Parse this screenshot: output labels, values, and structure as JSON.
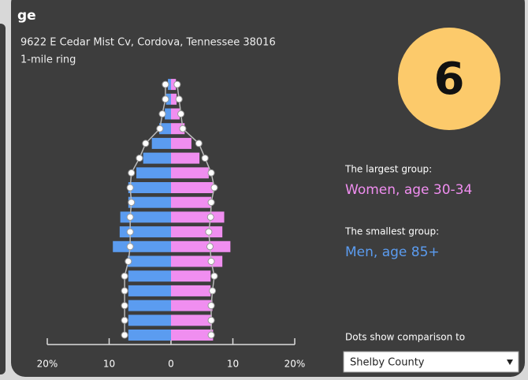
{
  "title": "ge",
  "subtitle": "9622 E Cedar Mist Cv, Cordova, Tennessee 38016",
  "ring": "1-mile ring",
  "badge": "6",
  "largest_label": "The largest group:",
  "largest_value": "Women, age 30-34",
  "smallest_label": "The smallest group:",
  "smallest_value": "Men, age 85+",
  "compare_label": "Dots show comparison to",
  "compare_select": "Shelby County",
  "chart_data": {
    "type": "pyramid",
    "categories": [
      null,
      null,
      null,
      null,
      null,
      null,
      null,
      null,
      null,
      null,
      null,
      null,
      null,
      null,
      null,
      null,
      null,
      null
    ],
    "series": [
      {
        "color": "#5b9cf0",
        "values": [
          -6.9,
          -6.9,
          -6.9,
          -6.9,
          -6.9,
          -7.0,
          -9.4,
          -8.3,
          -8.2,
          -6.9,
          -6.9,
          -5.6,
          -4.5,
          -3.1,
          -1.9,
          -1.0,
          -0.8,
          -0.5
        ]
      },
      {
        "color": "#f08ef0",
        "values": [
          6.8,
          6.6,
          6.7,
          6.4,
          6.4,
          8.3,
          9.6,
          8.3,
          8.6,
          6.5,
          6.9,
          6.1,
          4.6,
          3.3,
          2.2,
          1.4,
          0.9,
          0.8
        ]
      }
    ],
    "comparison": [
      {
        "color": "#ffffff",
        "values": [
          -7.5,
          -7.5,
          -7.5,
          -7.5,
          -7.5,
          -6.9,
          -6.6,
          -6.6,
          -6.6,
          -6.4,
          -6.6,
          -6.4,
          -5.1,
          -4.1,
          -1.8,
          -1.4,
          -0.9,
          -0.9
        ]
      },
      {
        "color": "#ffffff",
        "values": [
          6.5,
          6.5,
          6.5,
          6.7,
          7.0,
          6.5,
          6.3,
          6.1,
          6.4,
          6.5,
          7.0,
          6.5,
          5.5,
          4.5,
          1.9,
          1.6,
          1.3,
          1.0
        ]
      }
    ],
    "xlim": [
      -20,
      20
    ],
    "xticks": [
      {
        "value": -20,
        "label": "20%"
      },
      {
        "value": -10,
        "label": "10"
      },
      0,
      10,
      {
        "value": 20,
        "label": "20%"
      }
    ]
  }
}
